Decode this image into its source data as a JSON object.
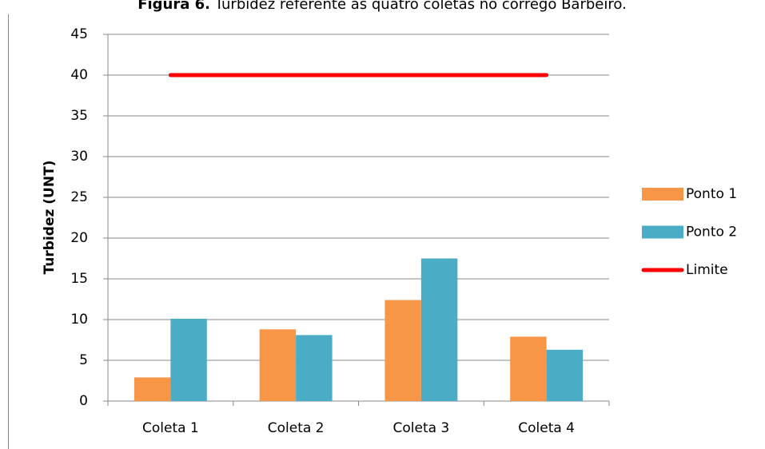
{
  "chart_data": {
    "type": "bar",
    "title_label": "Figura 6.",
    "title": "Turbidez referente às quatro coletas no córrego Barbeiro.",
    "y_label": "Turbidez (UNT)",
    "categories": [
      "Coleta 1",
      "Coleta 2",
      "Coleta 3",
      "Coleta 4"
    ],
    "series": [
      {
        "name": "Ponto 1",
        "color": "#f79646",
        "type": "bar",
        "values": [
          2.9,
          8.8,
          12.4,
          7.9
        ]
      },
      {
        "name": "Ponto 2",
        "color": "#4bacc6",
        "type": "bar",
        "values": [
          10.1,
          8.1,
          17.5,
          6.3
        ]
      },
      {
        "name": "Limite",
        "color": "#ff0000",
        "type": "line",
        "values": [
          40,
          40,
          40,
          40
        ]
      }
    ],
    "ylim": [
      0,
      45
    ],
    "yticks": [
      0,
      5,
      10,
      15,
      20,
      25,
      30,
      35,
      40,
      45
    ],
    "grid": true,
    "legend": "right"
  }
}
